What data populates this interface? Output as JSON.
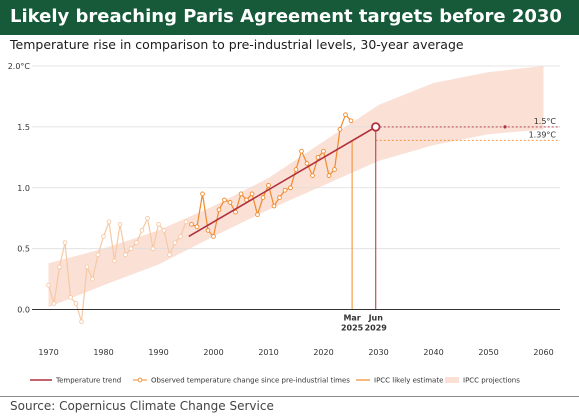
{
  "header": {
    "title": "Likely breaching Paris Agreement targets before 2030",
    "subtitle": "Temperature rise in comparison to pre-industrial levels, 30-year average"
  },
  "footer": {
    "source": "Source: Copernicus Climate Change Service"
  },
  "colors": {
    "title_bar": "#165a3a",
    "trend": "#b0303b",
    "observed": "#f08a2c",
    "observed_faded": "#f6c9a4",
    "ipcc_band": "#fbe0d6",
    "grid": "#dddddd"
  },
  "chart_data": {
    "type": "line",
    "title": "Likely breaching Paris Agreement targets before 2030",
    "subtitle": "Temperature rise in comparison to pre-industrial levels, 30-year average",
    "xlabel": "",
    "ylabel": "",
    "xlim": [
      1967,
      2063
    ],
    "ylim": [
      -0.25,
      2.0
    ],
    "x_ticks": [
      1970,
      1980,
      1990,
      2000,
      2010,
      2020,
      2030,
      2040,
      2050,
      2060
    ],
    "y_ticks": [
      {
        "value": 0.0,
        "label": "0.0"
      },
      {
        "value": 0.5,
        "label": "0.5"
      },
      {
        "value": 1.0,
        "label": "1.0"
      },
      {
        "value": 1.5,
        "label": "1.5"
      },
      {
        "value": 2.0,
        "label": "2.0°C"
      }
    ],
    "grid": true,
    "legend_position": "bottom",
    "legend": [
      {
        "key": "trend",
        "label": "Temperature trend"
      },
      {
        "key": "observed",
        "label": "Observed temperature change since pre-industrial times"
      },
      {
        "key": "ipcc_estimate",
        "label": "IPCC likely estimate"
      },
      {
        "key": "ipcc_band",
        "label": "IPCC projections"
      }
    ],
    "reference_lines": [
      {
        "key": "l15",
        "value": 1.5,
        "label": "1.5°C",
        "color": "#b0303b"
      },
      {
        "key": "l139",
        "value": 1.39,
        "label": "1.39°C",
        "color": "#f08a2c"
      }
    ],
    "markers": [
      {
        "key": "mar2025",
        "x": 2025.2,
        "y": 1.39,
        "line1": "Mar",
        "line2": "2025",
        "color": "#f08a2c"
      },
      {
        "key": "jun2029",
        "x": 2029.5,
        "y": 1.5,
        "line1": "Jun",
        "line2": "2029",
        "color": "#b0303b"
      }
    ],
    "series": [
      {
        "key": "trend",
        "name": "Temperature trend",
        "x": [
          1995.5,
          2029.5
        ],
        "y": [
          0.6,
          1.5
        ]
      },
      {
        "key": "ipcc_band",
        "name": "IPCC projections",
        "x": [
          1970,
          1980,
          1990,
          2000,
          2010,
          2020,
          2030,
          2040,
          2050,
          2060
        ],
        "lower": [
          0.02,
          0.2,
          0.37,
          0.6,
          0.82,
          1.02,
          1.22,
          1.35,
          1.44,
          1.48
        ],
        "upper": [
          0.38,
          0.5,
          0.65,
          0.85,
          1.08,
          1.38,
          1.68,
          1.86,
          1.95,
          2.0
        ]
      },
      {
        "key": "observed_early",
        "name": "Observed temperature change since pre-industrial times",
        "x": [
          1970,
          1971,
          1972,
          1973,
          1974,
          1975,
          1976,
          1977,
          1978,
          1979,
          1980,
          1981,
          1982,
          1983,
          1984,
          1985,
          1986,
          1987,
          1988,
          1989,
          1990,
          1991,
          1992,
          1993,
          1994,
          1995
        ],
        "y": [
          0.2,
          0.05,
          0.35,
          0.55,
          0.1,
          0.05,
          -0.1,
          0.35,
          0.25,
          0.45,
          0.6,
          0.72,
          0.4,
          0.7,
          0.45,
          0.5,
          0.55,
          0.65,
          0.75,
          0.5,
          0.7,
          0.65,
          0.45,
          0.55,
          0.6,
          0.72
        ]
      },
      {
        "key": "observed_recent",
        "name": "Observed temperature change since pre-industrial times",
        "x": [
          1996,
          1997,
          1998,
          1999,
          2000,
          2001,
          2002,
          2003,
          2004,
          2005,
          2006,
          2007,
          2008,
          2009,
          2010,
          2011,
          2012,
          2013,
          2014,
          2015,
          2016,
          2017,
          2018,
          2019,
          2020,
          2021,
          2022,
          2023,
          2024,
          2025
        ],
        "y": [
          0.7,
          0.68,
          0.95,
          0.65,
          0.6,
          0.82,
          0.9,
          0.88,
          0.8,
          0.95,
          0.9,
          0.95,
          0.78,
          0.92,
          1.02,
          0.85,
          0.92,
          0.98,
          1.0,
          1.15,
          1.3,
          1.2,
          1.1,
          1.25,
          1.3,
          1.1,
          1.15,
          1.48,
          1.6,
          1.55
        ]
      }
    ]
  }
}
